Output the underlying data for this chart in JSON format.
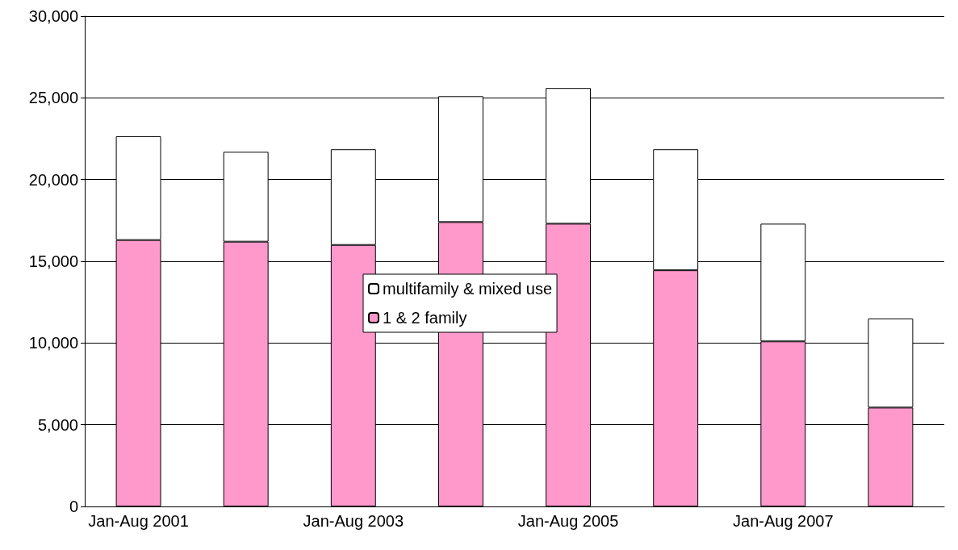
{
  "chart_data": {
    "type": "bar",
    "stacked": true,
    "categories": [
      "Jan-Aug 2001",
      null,
      "Jan-Aug 2003",
      null,
      "Jan-Aug 2005",
      null,
      "Jan-Aug 2007",
      null
    ],
    "series": [
      {
        "name": "1 & 2 family",
        "color": "#ff99cc",
        "values": [
          16300,
          16200,
          16000,
          17400,
          17300,
          14450,
          10100,
          6050
        ]
      },
      {
        "name": "multifamily & mixed use",
        "color": "#ffffff",
        "values": [
          6350,
          5500,
          5850,
          7700,
          8300,
          7400,
          7200,
          5450
        ]
      }
    ],
    "ylim": [
      0,
      30000
    ],
    "yticks": [
      0,
      {
        "value": 5000,
        "label": "5,000"
      },
      {
        "value": 10000,
        "label": "10,000"
      },
      {
        "value": 15000,
        "label": "15,000"
      },
      {
        "value": 20000,
        "label": "20,000"
      },
      {
        "value": 25000,
        "label": "25,000"
      },
      {
        "value": 30000,
        "label": "30,000"
      }
    ],
    "grid": "y",
    "legend": "center"
  }
}
